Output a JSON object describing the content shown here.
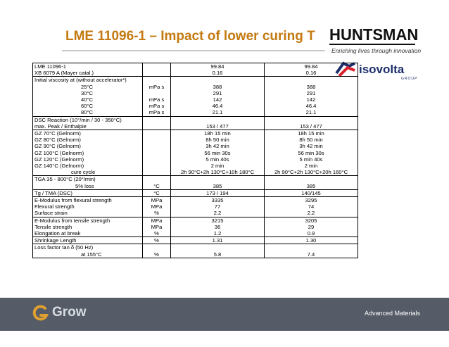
{
  "slide": {
    "title": "LME 11096-1 – Impact of lower curing T"
  },
  "brand": {
    "huntsman": "HUNTSMAN",
    "tagline": "Enriching lives through innovation",
    "isovolta": "isovolta",
    "isovolta_group": "GROUP",
    "grow": "Grow",
    "footer_label": "Advanced Materials",
    "colors": {
      "title": "#c47a10",
      "footer": "#555b67",
      "isovolta": "#1c2f6b",
      "isovolta_accent": "#d8202a"
    }
  },
  "table": {
    "rows": [
      {
        "lines": [
          "LME 11096-1",
          "XB 6079 A (Mayer catal.)"
        ],
        "indent": [
          "",
          ""
        ],
        "unit": [
          "",
          ""
        ],
        "a": [
          "99.84",
          "0.16"
        ],
        "b": [
          "99.84",
          "0.16"
        ]
      },
      {
        "lines": [
          "Initial  viscosity at (without accelerator*)",
          "25°C",
          "30°C",
          "40°C",
          "60°C",
          "80°C"
        ],
        "indent": [
          "",
          "ind1",
          "ind1",
          "ind1",
          "ind1",
          "ind1"
        ],
        "unit": [
          "",
          "mPa s",
          "",
          "mPa s",
          "mPa s",
          "mPa s"
        ],
        "a": [
          "",
          "388",
          "291",
          "142",
          "46.4",
          "21.1"
        ],
        "b": [
          "",
          "388",
          "291",
          "142",
          "46.4",
          "21.1"
        ]
      },
      {
        "lines": [
          "DSC Reaction (10°/min / 30 - 350°C)",
          "max. Peak / Enthalpie"
        ],
        "indent": [
          "",
          ""
        ],
        "unit": [
          "",
          ""
        ],
        "a": [
          "",
          "153 / 477"
        ],
        "b": [
          "",
          "153 / 477"
        ]
      },
      {
        "lines": [
          "GZ   70°C (Gelnorm)",
          "GZ   80°C (Gelnorm)",
          "GZ   90°C (Gelnorm)",
          "GZ 100°C (Gelnorm)",
          "GZ 120°C (Gelnorm)",
          "GZ 140°C (Gelnorm)",
          "cure cycle"
        ],
        "indent": [
          "",
          "",
          "",
          "",
          "",
          "",
          "ind2"
        ],
        "unit": [
          "",
          "",
          "",
          "",
          "",
          "",
          ""
        ],
        "a": [
          "18h 15 min",
          "8h 50 min",
          "3h 42 min",
          "56 min 30s",
          "5 min 40s",
          "2 min",
          "2h 90°C+2h 130°C+10h 180°C"
        ],
        "b": [
          "18h 15 min",
          "8h 50 min",
          "3h 42 min",
          "56 min 30s",
          "5 min 40s",
          "2 min",
          "2h 90°C+2h 130°C+20h 160°C"
        ]
      },
      {
        "lines": [
          "TGA 35 - 800°C (20°/min)",
          "5% loss"
        ],
        "indent": [
          "",
          "ind3"
        ],
        "unit": [
          "",
          "°C"
        ],
        "a": [
          "",
          "385"
        ],
        "b": [
          "",
          "385"
        ]
      },
      {
        "lines": [
          "Tg / TMA       (DSC)"
        ],
        "indent": [
          ""
        ],
        "unit": [
          "°C"
        ],
        "a": [
          "173 / 194"
        ],
        "b": [
          "140/145"
        ]
      },
      {
        "lines": [
          "E-Modulus from flexural strength",
          "Flexural strength",
          "Surface strain"
        ],
        "indent": [
          "",
          "",
          ""
        ],
        "unit": [
          "MPa",
          "MPa",
          "%"
        ],
        "a": [
          "3335",
          "77",
          "2.2"
        ],
        "b": [
          "3295",
          "74",
          "2.2"
        ]
      },
      {
        "lines": [
          "E-Modulus from tensile strength",
          "Tensile strength",
          "Elongation at break"
        ],
        "indent": [
          "",
          "",
          ""
        ],
        "unit": [
          "MPa",
          "MPa",
          "%"
        ],
        "a": [
          "3215",
          "36",
          "1.2"
        ],
        "b": [
          "3205",
          "29",
          "0.9"
        ]
      },
      {
        "lines": [
          "Shrinkage  Length"
        ],
        "indent": [
          ""
        ],
        "unit": [
          "%"
        ],
        "a": [
          "1.31"
        ],
        "b": [
          "1.30"
        ]
      },
      {
        "lines": [
          "Loss factor tan δ (50 Hz)",
          "at 155°C"
        ],
        "indent": [
          "",
          "ind1"
        ],
        "unit": [
          "",
          "%"
        ],
        "a": [
          "",
          "5.8"
        ],
        "b": [
          "",
          "7.4"
        ]
      }
    ]
  }
}
